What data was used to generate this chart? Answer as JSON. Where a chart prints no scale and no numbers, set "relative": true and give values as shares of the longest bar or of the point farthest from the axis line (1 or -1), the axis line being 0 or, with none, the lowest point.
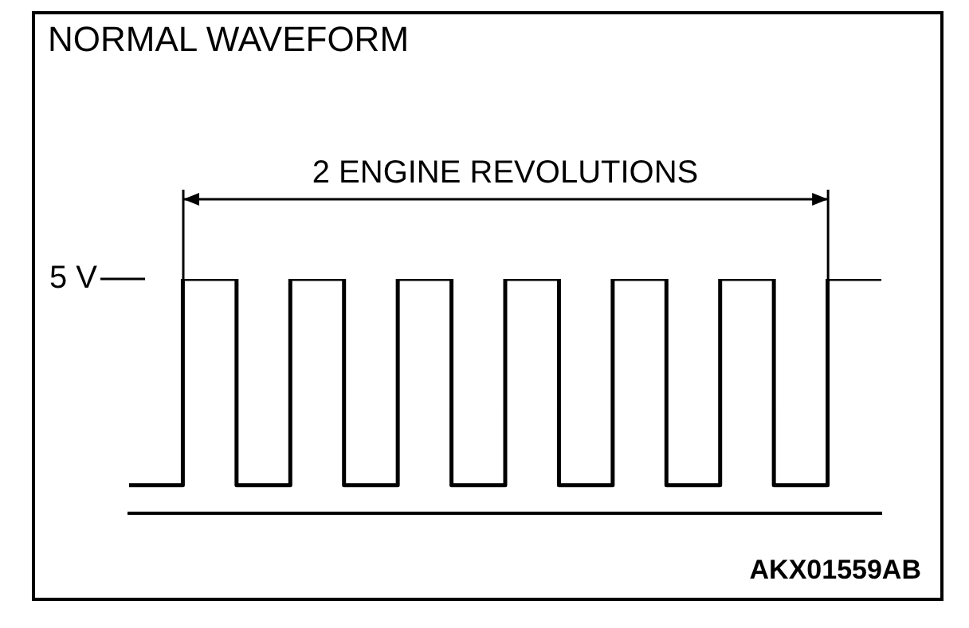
{
  "chart_data": {
    "type": "step",
    "title": "NORMAL WAVEFORM",
    "relative": true,
    "categories": [
      null,
      null,
      null,
      null,
      null,
      null,
      null,
      null,
      null,
      null,
      null,
      null,
      null,
      null,
      null
    ],
    "values": [
      0.12,
      1,
      0.12,
      1,
      0.12,
      1,
      0.12,
      1,
      0.12,
      1,
      0.12,
      1,
      0.12,
      1,
      1
    ],
    "color": "#000000",
    "annotations": [
      "5 V",
      "2 ENGINE REVOLUTIONS",
      "AKX01559AB"
    ]
  }
}
